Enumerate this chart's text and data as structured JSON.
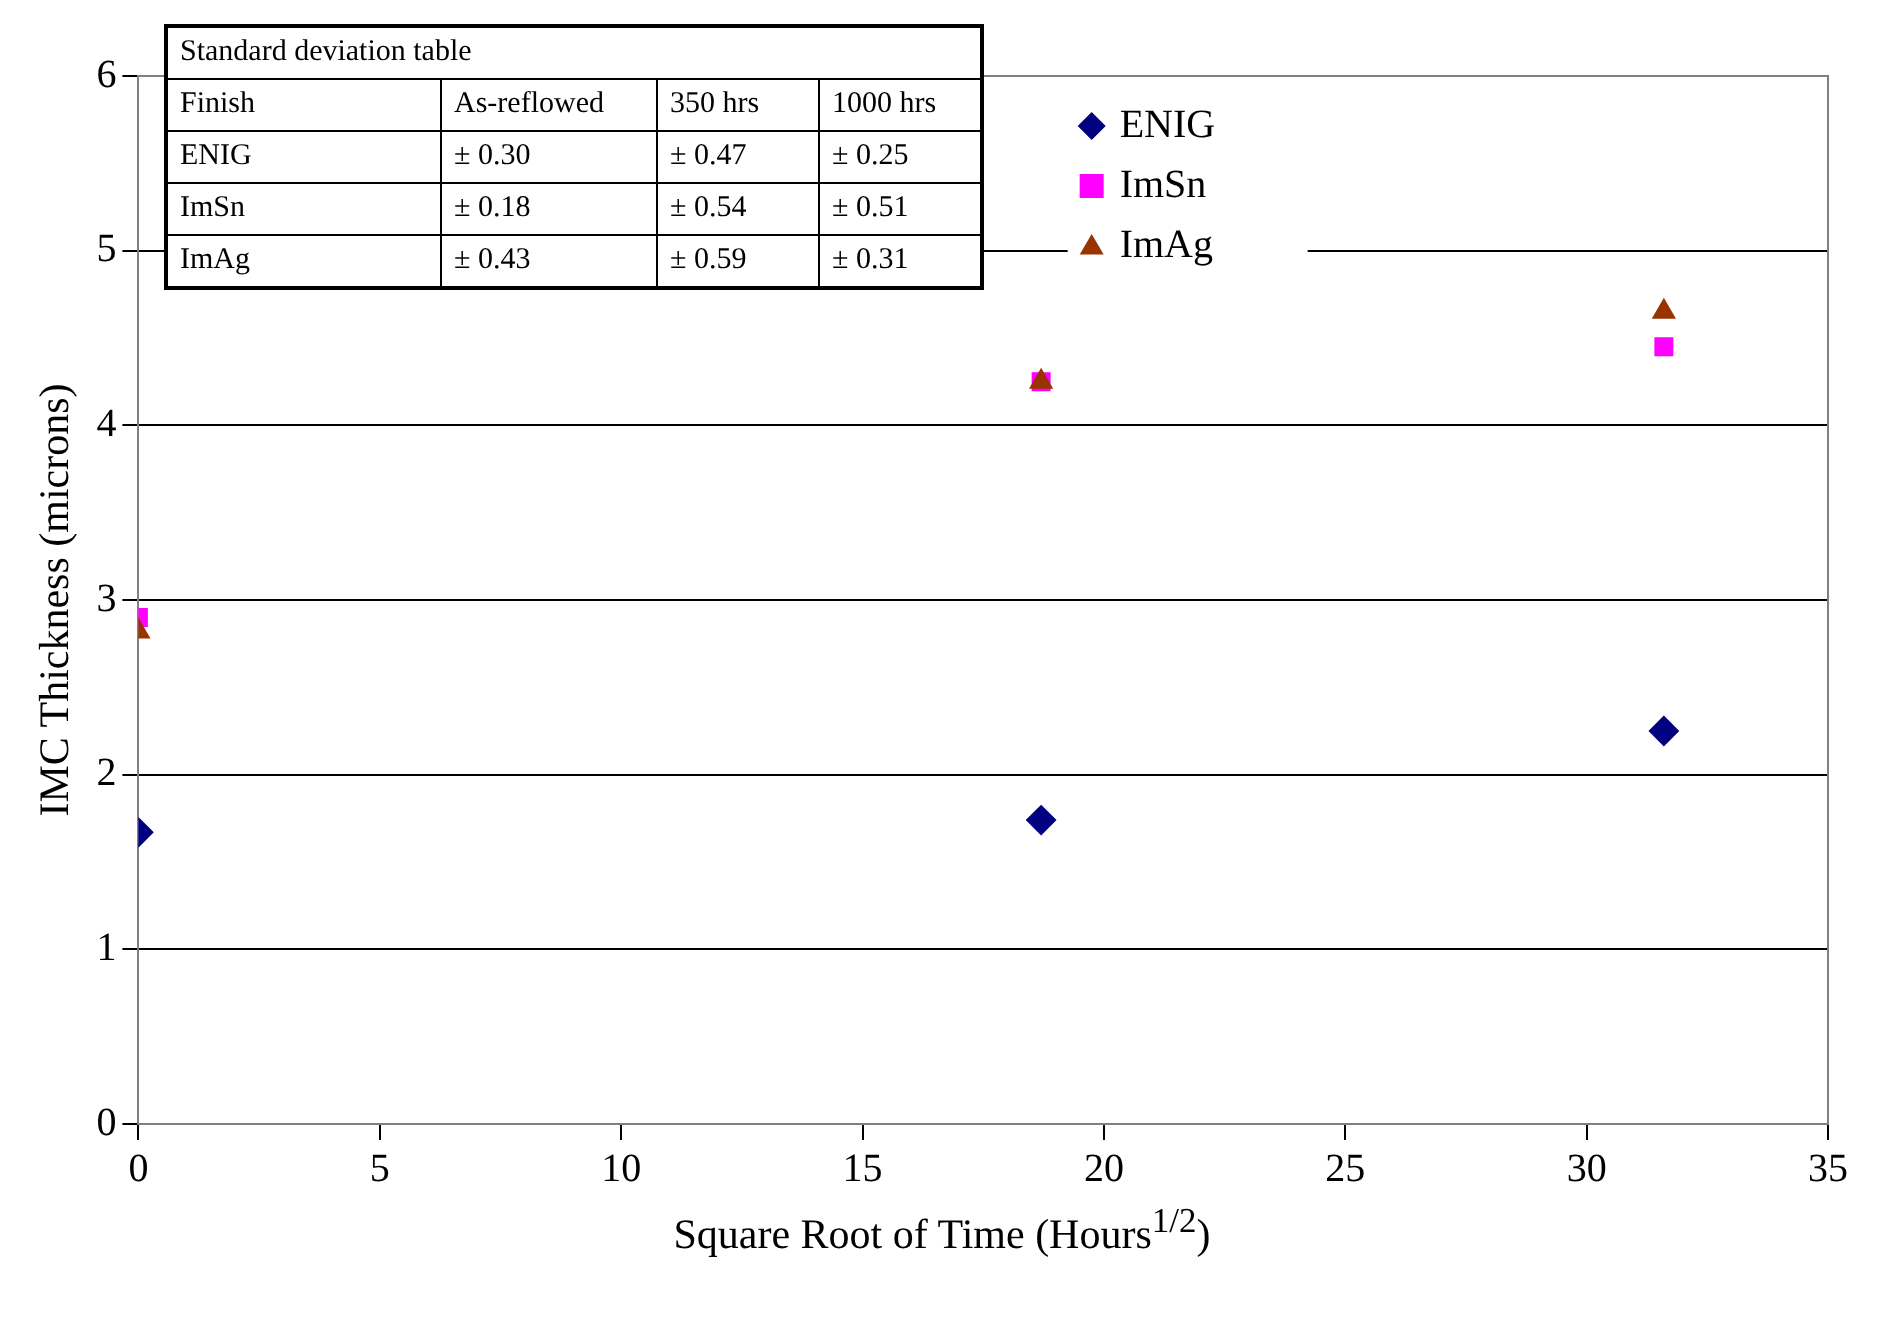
{
  "chart_data": {
    "type": "scatter",
    "xlabel": "Square Root of Time (Hours$^{1/2}$)",
    "ylabel": "IMC Thickness (microns)",
    "xlim": [
      0,
      35
    ],
    "xticks": [
      0,
      5,
      10,
      15,
      20,
      25,
      30,
      35
    ],
    "ylim": [
      0,
      6
    ],
    "yticks": [
      0,
      1,
      2,
      3,
      4,
      5,
      6
    ],
    "grid": "y",
    "legend": "top right",
    "series": [
      {
        "name": "ENIG",
        "color": "#000080",
        "marker": "diamond",
        "x": [
          0,
          18.7,
          31.6
        ],
        "values": [
          1.67,
          1.74,
          2.25
        ]
      },
      {
        "name": "ImSn",
        "color": "#ff00ff",
        "marker": "square",
        "x": [
          0,
          18.7,
          31.6
        ],
        "values": [
          2.9,
          4.25,
          4.45
        ]
      },
      {
        "name": "ImAg",
        "color": "#993300",
        "marker": "triangle",
        "x": [
          0,
          18.7,
          31.6
        ],
        "values": [
          2.82,
          4.25,
          4.65
        ]
      }
    ],
    "annotations": [
      "Standard deviation table",
      "Finish",
      "As-reflowed",
      "350 hrs",
      "1000 hrs",
      "ENIG",
      "± 0.30",
      "± 0.47",
      "± 0.25",
      "ImSn",
      "± 0.18",
      "± 0.54",
      "± 0.51",
      "ImAg",
      "± 0.43",
      "± 0.59",
      "± 0.31"
    ]
  }
}
